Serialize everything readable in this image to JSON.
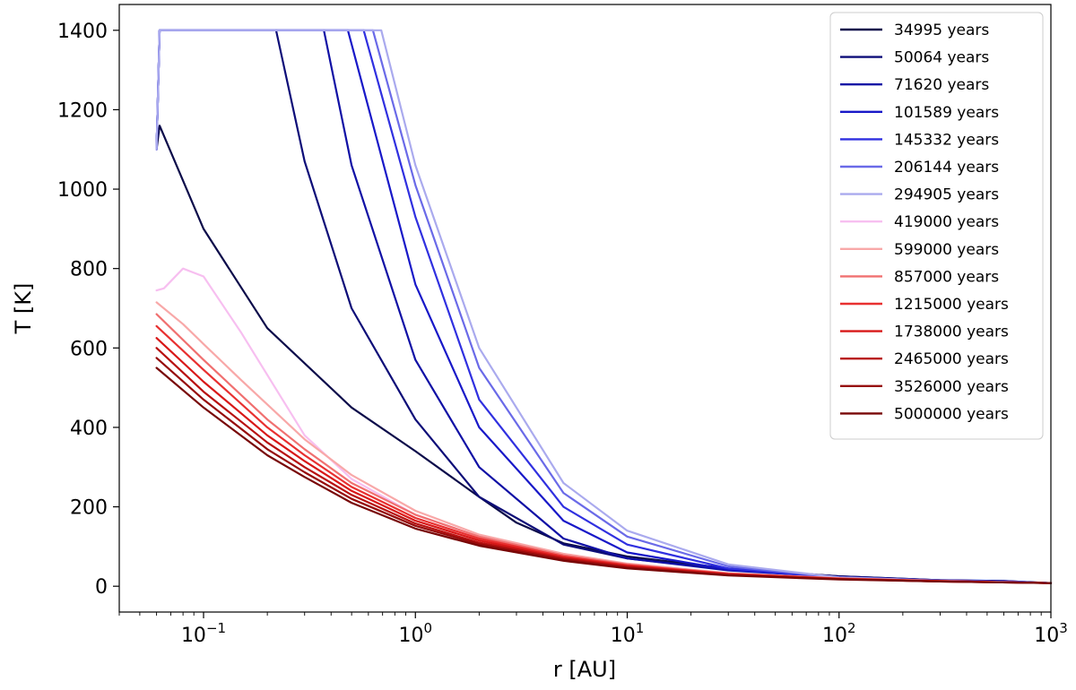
{
  "chart_data": {
    "type": "line",
    "xlabel": "r [AU]",
    "ylabel": "T [K]",
    "x_scale": "log",
    "xlim": [
      0.04,
      1000
    ],
    "ylim": [
      -65,
      1465
    ],
    "x_ticks": [
      {
        "value": 0.1,
        "base": "10",
        "exp": "−1"
      },
      {
        "value": 1,
        "base": "10",
        "exp": "0"
      },
      {
        "value": 10,
        "base": "10",
        "exp": "1"
      },
      {
        "value": 100,
        "base": "10",
        "exp": "2"
      },
      {
        "value": 1000,
        "base": "10",
        "exp": "3"
      }
    ],
    "y_ticks": [
      0,
      200,
      400,
      600,
      800,
      1000,
      1200,
      1400
    ],
    "grid": false,
    "legend_position": "top-right",
    "series": [
      {
        "name": "34995 years",
        "color": "#0b0b4a",
        "points": [
          [
            0.06,
            1100
          ],
          [
            0.062,
            1160
          ],
          [
            0.1,
            900
          ],
          [
            0.2,
            650
          ],
          [
            0.5,
            450
          ],
          [
            1,
            340
          ],
          [
            2,
            225
          ],
          [
            3,
            160
          ],
          [
            5,
            108
          ],
          [
            10,
            75
          ],
          [
            30,
            45
          ],
          [
            100,
            25
          ],
          [
            300,
            15
          ],
          [
            600,
            12
          ],
          [
            1000,
            8
          ]
        ]
      },
      {
        "name": "50064 years",
        "color": "#0d0d78",
        "points": [
          [
            0.06,
            1100
          ],
          [
            0.062,
            1400
          ],
          [
            0.22,
            1400
          ],
          [
            0.3,
            1070
          ],
          [
            0.5,
            700
          ],
          [
            1,
            420
          ],
          [
            2,
            225
          ],
          [
            5,
            105
          ],
          [
            10,
            70
          ],
          [
            30,
            42
          ],
          [
            100,
            25
          ],
          [
            300,
            15
          ],
          [
            600,
            13
          ],
          [
            1000,
            8
          ]
        ]
      },
      {
        "name": "71620 years",
        "color": "#1010a5",
        "points": [
          [
            0.06,
            1100
          ],
          [
            0.062,
            1400
          ],
          [
            0.37,
            1400
          ],
          [
            0.5,
            1060
          ],
          [
            1,
            570
          ],
          [
            2,
            300
          ],
          [
            5,
            120
          ],
          [
            10,
            70
          ],
          [
            30,
            40
          ],
          [
            100,
            23
          ],
          [
            300,
            15
          ],
          [
            600,
            13
          ],
          [
            1000,
            8
          ]
        ]
      },
      {
        "name": "101589 years",
        "color": "#1818c8",
        "points": [
          [
            0.06,
            1100
          ],
          [
            0.062,
            1400
          ],
          [
            0.48,
            1400
          ],
          [
            1,
            760
          ],
          [
            2,
            400
          ],
          [
            5,
            165
          ],
          [
            10,
            85
          ],
          [
            30,
            42
          ],
          [
            100,
            22
          ],
          [
            300,
            14
          ],
          [
            600,
            11
          ],
          [
            1000,
            8
          ]
        ]
      },
      {
        "name": "145332 years",
        "color": "#3030e0",
        "points": [
          [
            0.06,
            1100
          ],
          [
            0.062,
            1400
          ],
          [
            0.57,
            1400
          ],
          [
            1,
            930
          ],
          [
            2,
            470
          ],
          [
            5,
            200
          ],
          [
            10,
            105
          ],
          [
            30,
            45
          ],
          [
            100,
            22
          ],
          [
            300,
            14
          ],
          [
            600,
            11
          ],
          [
            1000,
            8
          ]
        ]
      },
      {
        "name": "206144 years",
        "color": "#6a6ae8",
        "points": [
          [
            0.06,
            1100
          ],
          [
            0.062,
            1400
          ],
          [
            0.63,
            1400
          ],
          [
            1,
            1010
          ],
          [
            2,
            550
          ],
          [
            5,
            235
          ],
          [
            10,
            125
          ],
          [
            30,
            50
          ],
          [
            100,
            22
          ],
          [
            300,
            14
          ],
          [
            600,
            11
          ],
          [
            1000,
            8
          ]
        ]
      },
      {
        "name": "294905 years",
        "color": "#aaaaee",
        "points": [
          [
            0.06,
            1100
          ],
          [
            0.062,
            1400
          ],
          [
            0.69,
            1400
          ],
          [
            1,
            1060
          ],
          [
            2,
            600
          ],
          [
            5,
            260
          ],
          [
            10,
            140
          ],
          [
            30,
            55
          ],
          [
            100,
            22
          ],
          [
            300,
            14
          ],
          [
            600,
            11
          ],
          [
            1000,
            8
          ]
        ]
      },
      {
        "name": "419000 years",
        "color": "#f7bff0",
        "points": [
          [
            0.06,
            745
          ],
          [
            0.065,
            750
          ],
          [
            0.08,
            800
          ],
          [
            0.1,
            780
          ],
          [
            0.15,
            640
          ],
          [
            0.3,
            380
          ],
          [
            0.5,
            270
          ],
          [
            1,
            180
          ],
          [
            2,
            125
          ],
          [
            5,
            80
          ],
          [
            10,
            55
          ],
          [
            30,
            32
          ],
          [
            100,
            20
          ],
          [
            300,
            13
          ],
          [
            1000,
            8
          ]
        ]
      },
      {
        "name": "599000 years",
        "color": "#f8a8a8",
        "points": [
          [
            0.06,
            715
          ],
          [
            0.08,
            660
          ],
          [
            0.1,
            610
          ],
          [
            0.15,
            520
          ],
          [
            0.3,
            370
          ],
          [
            0.5,
            280
          ],
          [
            1,
            190
          ],
          [
            2,
            130
          ],
          [
            5,
            82
          ],
          [
            10,
            57
          ],
          [
            30,
            33
          ],
          [
            100,
            20
          ],
          [
            300,
            13
          ],
          [
            1000,
            8
          ]
        ]
      },
      {
        "name": "857000 years",
        "color": "#f07070",
        "points": [
          [
            0.06,
            685
          ],
          [
            0.1,
            570
          ],
          [
            0.2,
            420
          ],
          [
            0.3,
            345
          ],
          [
            0.5,
            260
          ],
          [
            1,
            180
          ],
          [
            2,
            125
          ],
          [
            5,
            78
          ],
          [
            10,
            55
          ],
          [
            30,
            32
          ],
          [
            100,
            20
          ],
          [
            300,
            13
          ],
          [
            1000,
            8
          ]
        ]
      },
      {
        "name": "1215000 years",
        "color": "#e83030",
        "points": [
          [
            0.06,
            655
          ],
          [
            0.1,
            545
          ],
          [
            0.2,
            400
          ],
          [
            0.3,
            330
          ],
          [
            0.5,
            250
          ],
          [
            1,
            172
          ],
          [
            2,
            120
          ],
          [
            5,
            75
          ],
          [
            10,
            53
          ],
          [
            30,
            31
          ],
          [
            100,
            19
          ],
          [
            300,
            13
          ],
          [
            1000,
            8
          ]
        ]
      },
      {
        "name": "1738000 years",
        "color": "#d81818",
        "points": [
          [
            0.06,
            625
          ],
          [
            0.1,
            515
          ],
          [
            0.2,
            380
          ],
          [
            0.3,
            315
          ],
          [
            0.5,
            240
          ],
          [
            1,
            165
          ],
          [
            2,
            115
          ],
          [
            5,
            72
          ],
          [
            10,
            51
          ],
          [
            30,
            30
          ],
          [
            100,
            19
          ],
          [
            300,
            13
          ],
          [
            1000,
            8
          ]
        ]
      },
      {
        "name": "2465000 years",
        "color": "#b81010",
        "points": [
          [
            0.06,
            600
          ],
          [
            0.1,
            490
          ],
          [
            0.2,
            362
          ],
          [
            0.3,
            300
          ],
          [
            0.5,
            230
          ],
          [
            1,
            158
          ],
          [
            2,
            110
          ],
          [
            5,
            70
          ],
          [
            10,
            49
          ],
          [
            30,
            29
          ],
          [
            100,
            18
          ],
          [
            300,
            12
          ],
          [
            1000,
            8
          ]
        ]
      },
      {
        "name": "3526000 years",
        "color": "#960a0a",
        "points": [
          [
            0.06,
            575
          ],
          [
            0.1,
            470
          ],
          [
            0.2,
            345
          ],
          [
            0.3,
            287
          ],
          [
            0.5,
            220
          ],
          [
            1,
            152
          ],
          [
            2,
            106
          ],
          [
            5,
            67
          ],
          [
            10,
            47
          ],
          [
            30,
            28
          ],
          [
            100,
            18
          ],
          [
            300,
            12
          ],
          [
            1000,
            8
          ]
        ]
      },
      {
        "name": "5000000 years",
        "color": "#780606",
        "points": [
          [
            0.06,
            550
          ],
          [
            0.1,
            450
          ],
          [
            0.2,
            330
          ],
          [
            0.3,
            275
          ],
          [
            0.5,
            210
          ],
          [
            1,
            145
          ],
          [
            2,
            102
          ],
          [
            5,
            64
          ],
          [
            10,
            45
          ],
          [
            30,
            27
          ],
          [
            100,
            17
          ],
          [
            300,
            12
          ],
          [
            1000,
            8
          ]
        ]
      }
    ]
  }
}
